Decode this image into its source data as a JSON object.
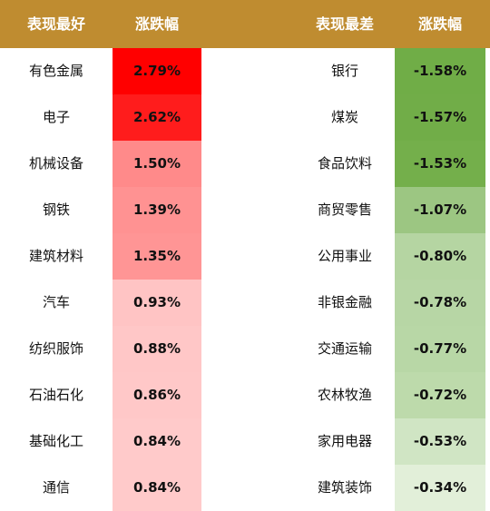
{
  "header": {
    "best_label": "表现最好",
    "best_change_label": "涨跌幅",
    "worst_label": "表现最差",
    "worst_change_label": "涨跌幅"
  },
  "colors": {
    "header_bg": "#bf8c30",
    "header_text": "#ffffff"
  },
  "chart_data": {
    "type": "table",
    "columns": [
      "表现最好",
      "涨跌幅",
      "表现最差",
      "涨跌幅"
    ],
    "best": [
      {
        "name": "有色金属",
        "value": "2.79%",
        "color": "#ff0000"
      },
      {
        "name": "电子",
        "value": "2.62%",
        "color": "#ff1c1c"
      },
      {
        "name": "机械设备",
        "value": "1.50%",
        "color": "#ff8a8a"
      },
      {
        "name": "钢铁",
        "value": "1.39%",
        "color": "#ff9292"
      },
      {
        "name": "建筑材料",
        "value": "1.35%",
        "color": "#ff9595"
      },
      {
        "name": "汽车",
        "value": "0.93%",
        "color": "#ffc4c4"
      },
      {
        "name": "纺织服饰",
        "value": "0.88%",
        "color": "#ffc7c7"
      },
      {
        "name": "石油石化",
        "value": "0.86%",
        "color": "#ffc8c8"
      },
      {
        "name": "基础化工",
        "value": "0.84%",
        "color": "#ffcaca"
      },
      {
        "name": "通信",
        "value": "0.84%",
        "color": "#ffcaca"
      }
    ],
    "worst": [
      {
        "name": "银行",
        "value": "-1.58%",
        "color": "#70ad47"
      },
      {
        "name": "煤炭",
        "value": "-1.57%",
        "color": "#71ad48"
      },
      {
        "name": "食品饮料",
        "value": "-1.53%",
        "color": "#74af4b"
      },
      {
        "name": "商贸零售",
        "value": "-1.07%",
        "color": "#9cc682"
      },
      {
        "name": "公用事业",
        "value": "-0.80%",
        "color": "#b5d5a2"
      },
      {
        "name": "非银金融",
        "value": "-0.78%",
        "color": "#b7d6a5"
      },
      {
        "name": "交通运输",
        "value": "-0.77%",
        "color": "#b8d7a6"
      },
      {
        "name": "农林牧渔",
        "value": "-0.72%",
        "color": "#bddaab"
      },
      {
        "name": "家用电器",
        "value": "-0.53%",
        "color": "#d0e5c4"
      },
      {
        "name": "建筑装饰",
        "value": "-0.34%",
        "color": "#e2efd9"
      }
    ]
  }
}
